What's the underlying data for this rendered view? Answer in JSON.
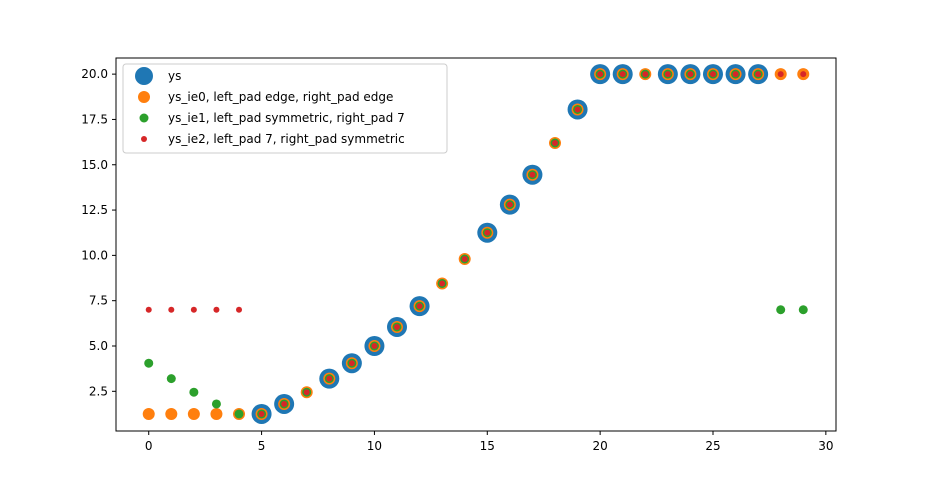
{
  "chart_data": {
    "type": "scatter",
    "title": "",
    "xlabel": "",
    "ylabel": "",
    "xlim": [
      -1.45,
      30.45
    ],
    "ylim": [
      0.31,
      20.89
    ],
    "x_ticks": [
      0,
      5,
      10,
      15,
      20,
      25,
      30
    ],
    "y_ticks": [
      2.5,
      5.0,
      7.5,
      10.0,
      12.5,
      15.0,
      17.5,
      20.0
    ],
    "x_tick_labels": [
      "0",
      "5",
      "10",
      "15",
      "20",
      "25",
      "30"
    ],
    "y_tick_labels": [
      "2.5",
      "5.0",
      "7.5",
      "10.0",
      "12.5",
      "15.0",
      "17.5",
      "20.0"
    ],
    "grid": false,
    "legend_position": "upper-left",
    "series": [
      {
        "name": "ys",
        "color": "#1f77b4",
        "marker_size": "largest",
        "points": [
          [
            5,
            1.25
          ],
          [
            6,
            1.8
          ],
          [
            8,
            3.2
          ],
          [
            9,
            4.05
          ],
          [
            10,
            5.0
          ],
          [
            11,
            6.05
          ],
          [
            12,
            7.2
          ],
          [
            15,
            11.25
          ],
          [
            16,
            12.8
          ],
          [
            17,
            14.45
          ],
          [
            19,
            18.05
          ],
          [
            20,
            20.0
          ],
          [
            21,
            20.0
          ],
          [
            23,
            20.0
          ],
          [
            24,
            20.0
          ],
          [
            25,
            20.0
          ],
          [
            26,
            20.0
          ],
          [
            27,
            20.0
          ]
        ]
      },
      {
        "name": "ys_ie0, left_pad edge, right_pad edge",
        "color": "#ff7f0e",
        "marker_size": "large",
        "points": [
          [
            0,
            1.25
          ],
          [
            1,
            1.25
          ],
          [
            2,
            1.25
          ],
          [
            3,
            1.25
          ],
          [
            4,
            1.25
          ],
          [
            5,
            1.25
          ],
          [
            6,
            1.8
          ],
          [
            7,
            2.45
          ],
          [
            8,
            3.2
          ],
          [
            9,
            4.05
          ],
          [
            10,
            5.0
          ],
          [
            11,
            6.05
          ],
          [
            12,
            7.2
          ],
          [
            13,
            8.45
          ],
          [
            14,
            9.8
          ],
          [
            15,
            11.25
          ],
          [
            16,
            12.8
          ],
          [
            17,
            14.45
          ],
          [
            18,
            16.2
          ],
          [
            19,
            18.05
          ],
          [
            20,
            20.0
          ],
          [
            21,
            20.0
          ],
          [
            22,
            20.0
          ],
          [
            23,
            20.0
          ],
          [
            24,
            20.0
          ],
          [
            25,
            20.0
          ],
          [
            26,
            20.0
          ],
          [
            27,
            20.0
          ],
          [
            28,
            20.0
          ],
          [
            29,
            20.0
          ]
        ]
      },
      {
        "name": "ys_ie1, left_pad symmetric, right_pad 7",
        "color": "#2ca02c",
        "marker_size": "medium",
        "points": [
          [
            0,
            4.05
          ],
          [
            1,
            3.2
          ],
          [
            2,
            2.45
          ],
          [
            3,
            1.8
          ],
          [
            4,
            1.25
          ],
          [
            5,
            1.25
          ],
          [
            6,
            1.8
          ],
          [
            7,
            2.45
          ],
          [
            8,
            3.2
          ],
          [
            9,
            4.05
          ],
          [
            10,
            5.0
          ],
          [
            11,
            6.05
          ],
          [
            12,
            7.2
          ],
          [
            13,
            8.45
          ],
          [
            14,
            9.8
          ],
          [
            15,
            11.25
          ],
          [
            16,
            12.8
          ],
          [
            17,
            14.45
          ],
          [
            18,
            16.2
          ],
          [
            19,
            18.05
          ],
          [
            20,
            20.0
          ],
          [
            21,
            20.0
          ],
          [
            22,
            20.0
          ],
          [
            23,
            20.0
          ],
          [
            24,
            20.0
          ],
          [
            25,
            20.0
          ],
          [
            26,
            20.0
          ],
          [
            27,
            20.0
          ],
          [
            28,
            7.0
          ],
          [
            29,
            7.0
          ]
        ]
      },
      {
        "name": "ys_ie2, left_pad 7, right_pad symmetric",
        "color": "#d62728",
        "marker_size": "small",
        "points": [
          [
            0,
            7.0
          ],
          [
            1,
            7.0
          ],
          [
            2,
            7.0
          ],
          [
            3,
            7.0
          ],
          [
            4,
            7.0
          ],
          [
            5,
            1.25
          ],
          [
            6,
            1.8
          ],
          [
            7,
            2.45
          ],
          [
            8,
            3.2
          ],
          [
            9,
            4.05
          ],
          [
            10,
            5.0
          ],
          [
            11,
            6.05
          ],
          [
            12,
            7.2
          ],
          [
            13,
            8.45
          ],
          [
            14,
            9.8
          ],
          [
            15,
            11.25
          ],
          [
            16,
            12.8
          ],
          [
            17,
            14.45
          ],
          [
            18,
            16.2
          ],
          [
            19,
            18.05
          ],
          [
            20,
            20.0
          ],
          [
            21,
            20.0
          ],
          [
            22,
            20.0
          ],
          [
            23,
            20.0
          ],
          [
            24,
            20.0
          ],
          [
            25,
            20.0
          ],
          [
            26,
            20.0
          ],
          [
            27,
            20.0
          ],
          [
            28,
            20.0
          ],
          [
            29,
            20.0
          ]
        ]
      }
    ]
  }
}
